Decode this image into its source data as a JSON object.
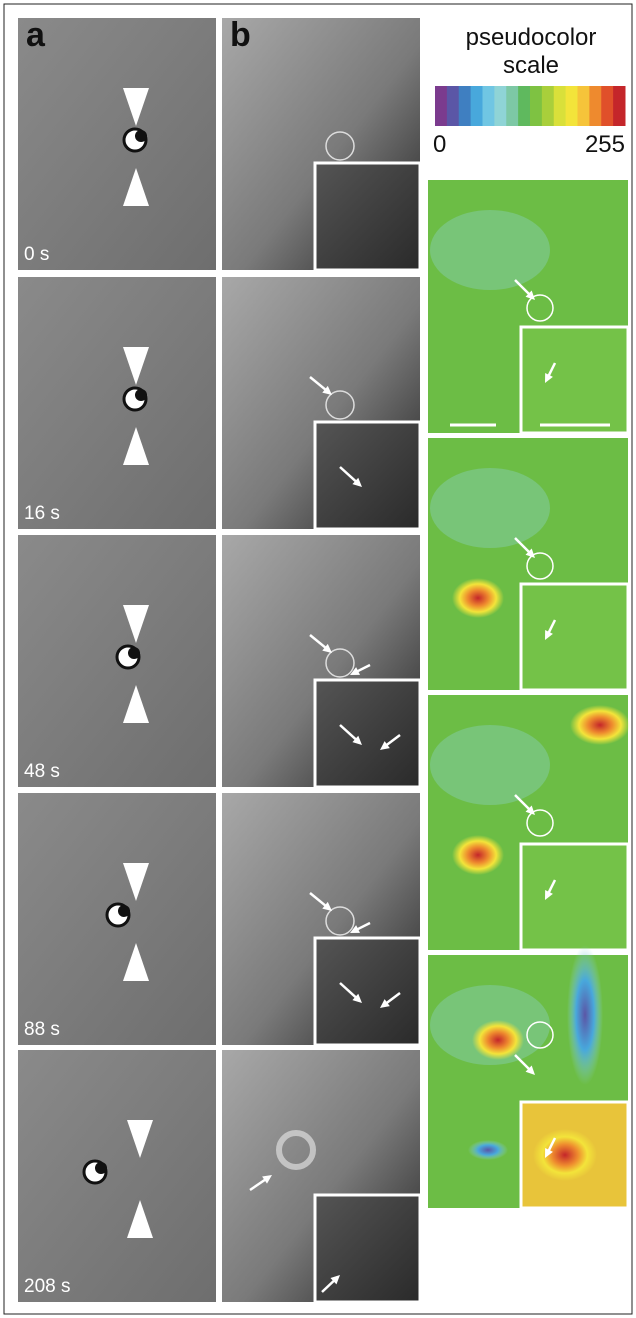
{
  "panel_labels": [
    "a",
    "b"
  ],
  "time_labels": [
    "0 s",
    "16 s",
    "48 s",
    "88 s",
    "208 s"
  ],
  "scale": {
    "title": "pseudocolor scale",
    "min": 0,
    "max": 255,
    "colors": [
      "#7b3b8e",
      "#5b56a6",
      "#3f7fc1",
      "#48a8dc",
      "#70c6e3",
      "#8fd4d6",
      "#7dc8a5",
      "#5fb95e",
      "#7ec242",
      "#a9cf3b",
      "#d9e03a",
      "#f3e43a",
      "#f6c43a",
      "#ee8a2e",
      "#e0502a",
      "#c4262a"
    ]
  }
}
